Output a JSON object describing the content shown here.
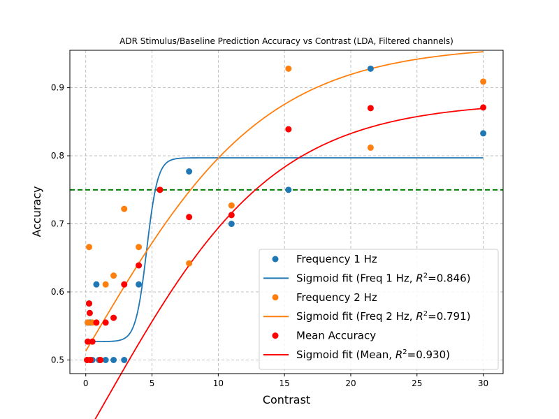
{
  "chart_data": {
    "type": "scatter",
    "title": "ADR Stimulus/Baseline Prediction Accuracy vs Contrast (LDA, Filtered channels)",
    "xlabel": "Contrast",
    "ylabel": "Accuracy",
    "xlim": [
      -1.2,
      31.5
    ],
    "ylim": [
      0.48,
      0.955
    ],
    "xticks": [
      0,
      5,
      10,
      15,
      20,
      25,
      30
    ],
    "yticks": [
      0.5,
      0.6,
      0.7,
      0.8,
      0.9
    ],
    "grid": true,
    "legend_position": "lower-right",
    "reference_line": {
      "y": 0.75,
      "color": "#008000",
      "style": "dashed"
    },
    "series": [
      {
        "name": "Frequency 1 Hz",
        "color": "#1f77b4",
        "points": [
          [
            0.1,
            0.5
          ],
          [
            0.15,
            0.555
          ],
          [
            0.25,
            0.583
          ],
          [
            0.35,
            0.555
          ],
          [
            0.5,
            0.5
          ],
          [
            0.8,
            0.611
          ],
          [
            1.0,
            0.5
          ],
          [
            1.5,
            0.5
          ],
          [
            2.1,
            0.5
          ],
          [
            2.9,
            0.5
          ],
          [
            4.0,
            0.611
          ],
          [
            5.6,
            0.75
          ],
          [
            7.8,
            0.777
          ],
          [
            11.0,
            0.7
          ],
          [
            15.3,
            0.75
          ],
          [
            21.5,
            0.928
          ],
          [
            30.0,
            0.833
          ]
        ]
      },
      {
        "name": "Frequency 2 Hz",
        "color": "#ff7f0e",
        "points": [
          [
            0.1,
            0.5
          ],
          [
            0.15,
            0.555
          ],
          [
            0.25,
            0.666
          ],
          [
            0.35,
            0.5
          ],
          [
            0.5,
            0.555
          ],
          [
            0.8,
            0.555
          ],
          [
            1.1,
            0.5
          ],
          [
            1.5,
            0.611
          ],
          [
            2.1,
            0.624
          ],
          [
            2.9,
            0.722
          ],
          [
            4.0,
            0.666
          ],
          [
            5.6,
            0.75
          ],
          [
            7.8,
            0.642
          ],
          [
            11.0,
            0.727
          ],
          [
            15.3,
            0.928
          ],
          [
            21.5,
            0.812
          ],
          [
            30.0,
            0.909
          ]
        ]
      },
      {
        "name": "Mean Accuracy",
        "color": "#ff0000",
        "points": [
          [
            0.1,
            0.5
          ],
          [
            0.15,
            0.527
          ],
          [
            0.25,
            0.583
          ],
          [
            0.3,
            0.569
          ],
          [
            0.35,
            0.5
          ],
          [
            0.5,
            0.527
          ],
          [
            0.8,
            0.555
          ],
          [
            1.1,
            0.5
          ],
          [
            1.5,
            0.555
          ],
          [
            2.1,
            0.562
          ],
          [
            2.9,
            0.611
          ],
          [
            4.0,
            0.639
          ],
          [
            5.6,
            0.75
          ],
          [
            7.8,
            0.71
          ],
          [
            11.0,
            0.713
          ],
          [
            15.3,
            0.839
          ],
          [
            21.5,
            0.87
          ],
          [
            30.0,
            0.871
          ]
        ]
      }
    ],
    "fits": [
      {
        "name": "Sigmoid fit (Freq 1 Hz, ",
        "r2": "0.846",
        "color": "#1f77b4",
        "L": 0.27,
        "k": 2.4,
        "x0": 4.6,
        "b": 0.527
      },
      {
        "name": "Sigmoid fit (Freq 2 Hz, ",
        "r2": "0.791",
        "color": "#ff7f0e",
        "L": 0.88,
        "k": 0.15,
        "x0": 0.3,
        "b": 0.083
      },
      {
        "name": "Sigmoid fit (Mean, ",
        "r2": "0.930",
        "color": "#ff0000",
        "L": 0.88,
        "k": 0.155,
        "x0": 1.5,
        "b": 0.0
      }
    ]
  }
}
